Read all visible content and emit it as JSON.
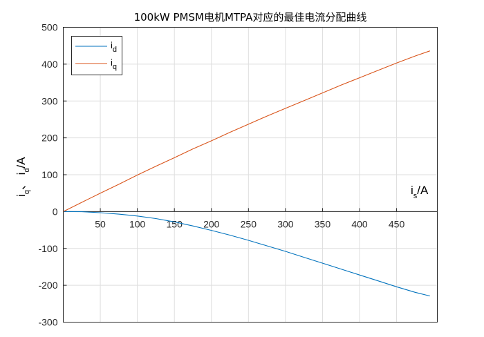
{
  "chart_data": {
    "type": "line",
    "title": "100kW PMSM电机MTPA对应的最佳电流分配曲线",
    "xlabel": {
      "main": "i",
      "sub": "s",
      "rest": "/A"
    },
    "ylabel": {
      "p1": "i",
      "s1": "q",
      "p2": "、 i",
      "s2": "d",
      "p3": "/A"
    },
    "xlim": [
      0,
      505
    ],
    "ylim": [
      -300,
      500
    ],
    "xticks": [
      50,
      100,
      150,
      200,
      250,
      300,
      350,
      400,
      450
    ],
    "yticks": [
      -300,
      -200,
      -100,
      0,
      100,
      200,
      300,
      400,
      500
    ],
    "grid": true,
    "legend_position": "top-left",
    "series": [
      {
        "name": "i",
        "name_sub": "d",
        "color": "#0072BD",
        "x": [
          0,
          25,
          50,
          75,
          100,
          125,
          150,
          175,
          200,
          225,
          250,
          275,
          300,
          325,
          350,
          375,
          400,
          425,
          450,
          475,
          495
        ],
        "y": [
          0,
          -0.5,
          -3,
          -7,
          -12,
          -19,
          -28,
          -39,
          -51,
          -64,
          -78,
          -93,
          -108,
          -124,
          -140,
          -156,
          -172,
          -188,
          -204,
          -219,
          -229
        ]
      },
      {
        "name": "i",
        "name_sub": "q",
        "color": "#D95319",
        "x": [
          0,
          25,
          50,
          75,
          100,
          125,
          150,
          175,
          200,
          225,
          250,
          275,
          300,
          325,
          350,
          375,
          400,
          425,
          450,
          475,
          495
        ],
        "y": [
          0,
          25,
          50,
          74,
          99,
          123,
          146,
          170,
          192,
          215,
          237,
          259,
          280,
          301,
          322,
          343,
          363,
          383,
          403,
          422,
          436
        ]
      }
    ]
  }
}
